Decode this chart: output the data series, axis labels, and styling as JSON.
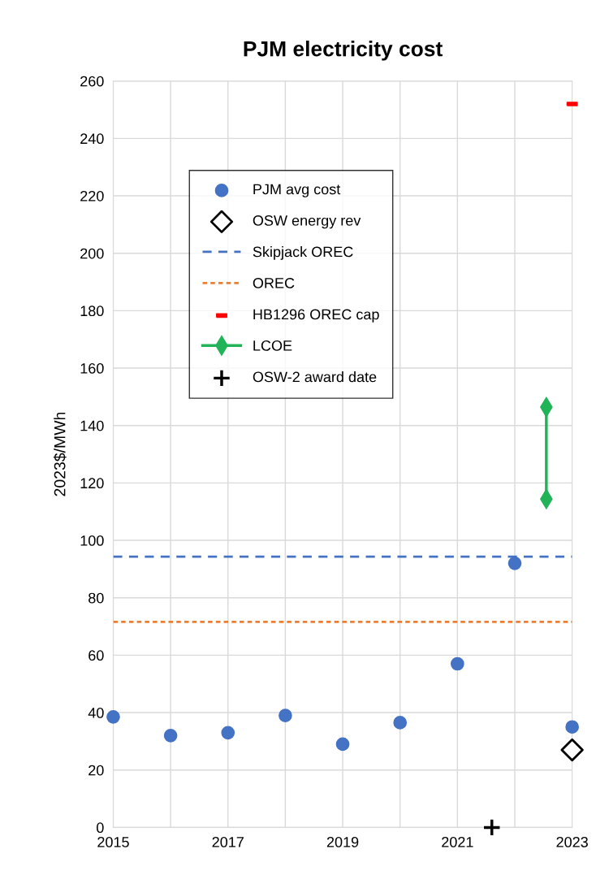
{
  "chart_data": {
    "type": "scatter",
    "title": "PJM electricity cost",
    "ylabel": "2023$/MWh",
    "xlim": [
      2015,
      2023
    ],
    "xticks": [
      2015,
      {
        "value": 2016,
        "label": null
      },
      2017,
      {
        "value": 2018,
        "label": null
      },
      2019,
      {
        "value": 2020,
        "label": null
      },
      2021,
      {
        "value": 2022,
        "label": null
      },
      2023
    ],
    "ylim": [
      0,
      260
    ],
    "yticks": [
      0,
      20,
      40,
      60,
      80,
      100,
      120,
      140,
      160,
      180,
      200,
      220,
      240,
      260
    ],
    "grid": true,
    "legend": "top left",
    "series": [
      {
        "name": "PJM avg cost",
        "marker": "circle",
        "color": "#4472c4",
        "x": [
          2015,
          2016,
          2017,
          2018,
          2019,
          2020,
          2021,
          2022,
          2023
        ],
        "values": [
          38.5,
          32,
          33,
          39,
          29,
          36.5,
          57,
          92,
          35
        ]
      },
      {
        "name": "OSW energy rev",
        "marker": "diamond",
        "color": "#000000",
        "x": [
          2023
        ],
        "values": [
          27
        ]
      },
      {
        "name": "Skipjack OREC",
        "type": "line",
        "line_style": "dashed",
        "marker": "none",
        "color": "#4472c4",
        "x": [
          2015,
          2023
        ],
        "values": [
          94.3,
          94.3
        ]
      },
      {
        "name": "OREC",
        "type": "line",
        "line_style": "dotted",
        "marker": "none",
        "color": "#ed7d31",
        "x": [
          2015,
          2023
        ],
        "values": [
          71.6,
          71.6
        ]
      },
      {
        "name": "HB1296 OREC cap",
        "marker": "square",
        "color": "#ff0000",
        "x": [
          2023
        ],
        "values": [
          252
        ]
      },
      {
        "name": "LCOE",
        "type": "line",
        "line_style": "solid",
        "marker": "diamond",
        "color": "#21b358",
        "x": [
          2022.55,
          2022.55
        ],
        "values": [
          114.4,
          146.4
        ]
      },
      {
        "name": "OSW-2 award date",
        "marker": "cross",
        "color": "#000000",
        "x": [
          2021.6
        ],
        "values": [
          0
        ]
      }
    ]
  }
}
